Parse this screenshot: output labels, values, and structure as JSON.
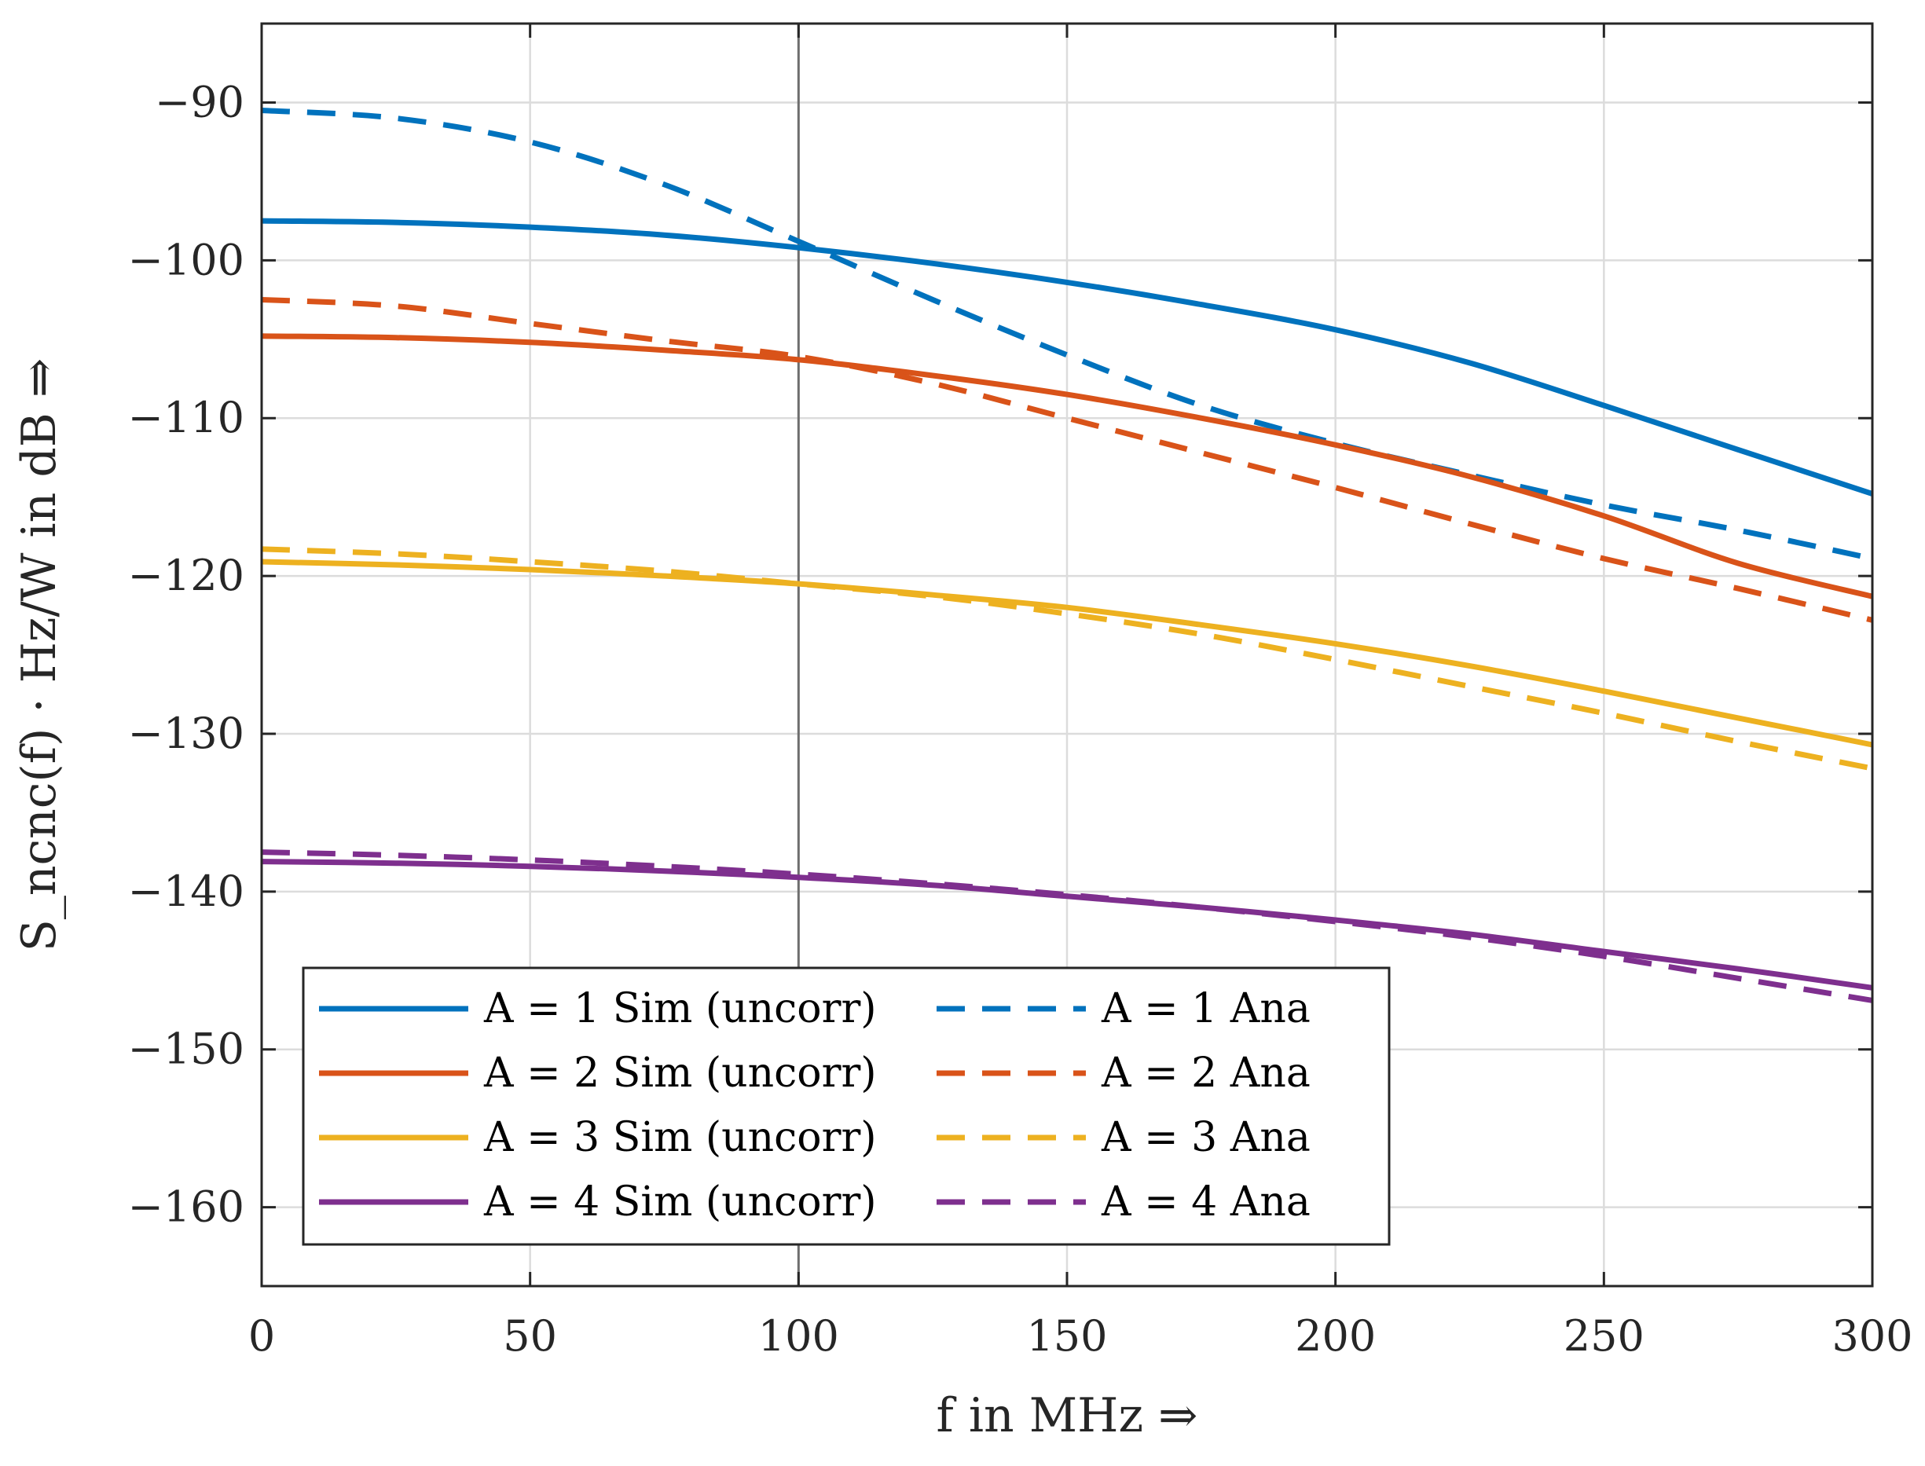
{
  "chart_data": {
    "type": "line",
    "title": "",
    "xlabel": "f in MHz ⇒",
    "ylabel": "S_ncnc(f) · Hz/W in dB ⇒",
    "xlim": [
      0,
      300
    ],
    "ylim": [
      -165,
      -85
    ],
    "xticks": [
      0,
      50,
      100,
      150,
      200,
      250,
      300
    ],
    "yticks": [
      -90,
      -100,
      -110,
      -120,
      -130,
      -140,
      -150,
      -160
    ],
    "xtick_labels": [
      "0",
      "50",
      "100",
      "150",
      "200",
      "250",
      "300"
    ],
    "ytick_labels": [
      "−90",
      "−100",
      "−110",
      "−120",
      "−130",
      "−140",
      "−150",
      "−160"
    ],
    "grid": true,
    "marker_line_x": 100,
    "legend_position": "bottom-left",
    "x": [
      0,
      25,
      50,
      75,
      100,
      125,
      150,
      175,
      200,
      225,
      250,
      275,
      300
    ],
    "series": [
      {
        "name": "A = 1 Sim (uncorr)",
        "color": "#0072BD",
        "style": "solid",
        "values": [
          -97.5,
          -97.6,
          -97.9,
          -98.4,
          -99.2,
          -100.2,
          -101.4,
          -102.8,
          -104.4,
          -106.5,
          -109.2,
          -112.0,
          -114.8
        ]
      },
      {
        "name": "A = 1 Ana",
        "color": "#0072BD",
        "style": "dashed",
        "values": [
          -90.5,
          -91.0,
          -92.5,
          -95.2,
          -98.8,
          -102.5,
          -106.0,
          -109.2,
          -111.6,
          -113.6,
          -115.5,
          -117.1,
          -118.9
        ]
      },
      {
        "name": "A = 2 Sim (uncorr)",
        "color": "#D95319",
        "style": "solid",
        "values": [
          -104.8,
          -104.9,
          -105.2,
          -105.7,
          -106.3,
          -107.3,
          -108.5,
          -110.0,
          -111.7,
          -113.7,
          -116.2,
          -119.2,
          -121.3
        ]
      },
      {
        "name": "A = 2 Ana",
        "color": "#D95319",
        "style": "dashed",
        "values": [
          -102.5,
          -102.9,
          -104.0,
          -105.1,
          -106.1,
          -107.8,
          -110.0,
          -112.2,
          -114.4,
          -116.7,
          -118.9,
          -120.8,
          -122.8
        ]
      },
      {
        "name": "A = 3 Sim (uncorr)",
        "color": "#EDB120",
        "style": "solid",
        "values": [
          -119.1,
          -119.3,
          -119.6,
          -120.0,
          -120.5,
          -121.2,
          -122.0,
          -123.1,
          -124.3,
          -125.7,
          -127.3,
          -129.0,
          -130.7
        ]
      },
      {
        "name": "A = 3 Ana",
        "color": "#EDB120",
        "style": "dashed",
        "values": [
          -118.3,
          -118.6,
          -119.1,
          -119.7,
          -120.5,
          -121.3,
          -122.4,
          -123.7,
          -125.3,
          -127.0,
          -128.7,
          -130.5,
          -132.2
        ]
      },
      {
        "name": "A = 4 Sim (uncorr)",
        "color": "#7E2F8E",
        "style": "solid",
        "values": [
          -138.1,
          -138.2,
          -138.4,
          -138.7,
          -139.1,
          -139.6,
          -140.3,
          -141.0,
          -141.8,
          -142.7,
          -143.8,
          -144.9,
          -146.1
        ]
      },
      {
        "name": "A = 4 Ana",
        "color": "#7E2F8E",
        "style": "dashed",
        "values": [
          -137.5,
          -137.7,
          -138.0,
          -138.4,
          -138.9,
          -139.5,
          -140.2,
          -141.0,
          -141.9,
          -142.9,
          -144.1,
          -145.5,
          -146.9
        ]
      }
    ],
    "legend": [
      {
        "label": "A = 1 Sim (uncorr)",
        "color": "#0072BD",
        "style": "solid"
      },
      {
        "label": "A = 1 Ana",
        "color": "#0072BD",
        "style": "dashed"
      },
      {
        "label": "A = 2 Sim (uncorr)",
        "color": "#D95319",
        "style": "solid"
      },
      {
        "label": "A = 2 Ana",
        "color": "#D95319",
        "style": "dashed"
      },
      {
        "label": "A = 3 Sim (uncorr)",
        "color": "#EDB120",
        "style": "solid"
      },
      {
        "label": "A = 3 Ana",
        "color": "#EDB120",
        "style": "dashed"
      },
      {
        "label": "A = 4 Sim (uncorr)",
        "color": "#7E2F8E",
        "style": "solid"
      },
      {
        "label": "A = 4 Ana",
        "color": "#7E2F8E",
        "style": "dashed"
      }
    ]
  }
}
